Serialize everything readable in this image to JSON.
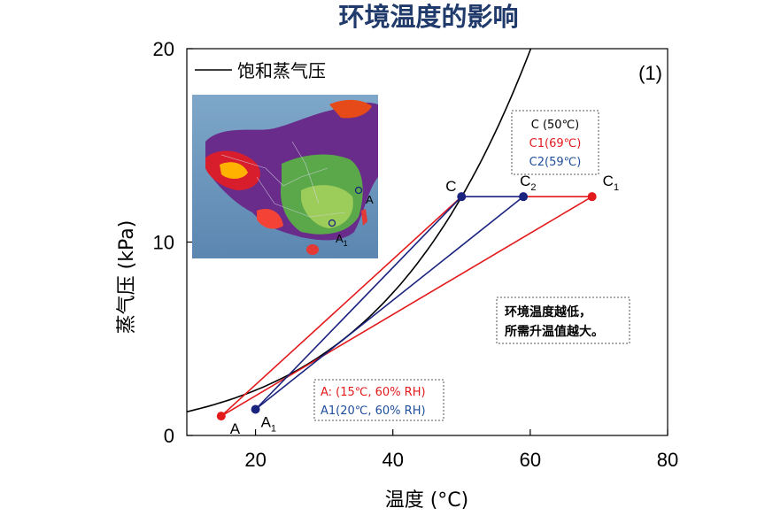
{
  "chart_data": {
    "type": "line",
    "title": "环境温度的影响",
    "panel_label": "(1)",
    "xlabel": "温度 (°C)",
    "ylabel": "蒸气压 (kPa)",
    "xlim": [
      10,
      80
    ],
    "ylim": [
      0,
      20
    ],
    "xticks": [
      20,
      40,
      60,
      80
    ],
    "yticks": [
      0,
      10,
      20
    ],
    "grid": false,
    "legend": {
      "position": "top-left",
      "entries": [
        "饱和蒸气压"
      ]
    },
    "series": [
      {
        "name": "饱和蒸气压",
        "color": "#000000",
        "x": [
          10,
          15,
          20,
          25,
          30,
          35,
          40,
          45,
          50,
          55,
          60
        ],
        "y": [
          1.23,
          1.71,
          2.34,
          3.17,
          4.25,
          5.63,
          7.38,
          9.59,
          12.35,
          15.76,
          19.95
        ]
      }
    ],
    "points": [
      {
        "label": "A",
        "x": 15,
        "y": 1.0,
        "color": "#e31a1c"
      },
      {
        "label": "A1",
        "x": 20,
        "y": 1.35,
        "color": "#1a237e"
      },
      {
        "label": "C",
        "x": 50,
        "y": 12.35,
        "color": "#1a237e"
      },
      {
        "label": "C2",
        "x": 59,
        "y": 12.35,
        "color": "#1a237e"
      },
      {
        "label": "C1",
        "x": 69,
        "y": 12.35,
        "color": "#e31a1c"
      }
    ],
    "segments": [
      {
        "from": "A",
        "to": "C",
        "color": "#e31a1c"
      },
      {
        "from": "A",
        "to": "C1",
        "color": "#e31a1c"
      },
      {
        "from": "C2",
        "to": "C1",
        "color": "#e31a1c"
      },
      {
        "from": "A1",
        "to": "C",
        "color": "#1a237e"
      },
      {
        "from": "A1",
        "to": "C2",
        "color": "#1a237e"
      },
      {
        "from": "C",
        "to": "C2",
        "color": "#1a237e"
      }
    ],
    "annotations": {
      "c_box": [
        {
          "text": "C (50℃)",
          "color": "#000000"
        },
        {
          "text": "C1(69℃)",
          "color": "#e31a1c"
        },
        {
          "text": "C2(59℃)",
          "color": "#1f4e9c"
        }
      ],
      "a_box": [
        {
          "text": "A: (15℃, 60% RH)",
          "color": "#e31a1c"
        },
        {
          "text": "A1(20℃, 60% RH)",
          "color": "#1f4e9c"
        }
      ],
      "note_lines": [
        "环境温度越低，",
        "所需升温值越大。"
      ]
    },
    "inset_map_labels": [
      "A",
      "A1"
    ]
  }
}
